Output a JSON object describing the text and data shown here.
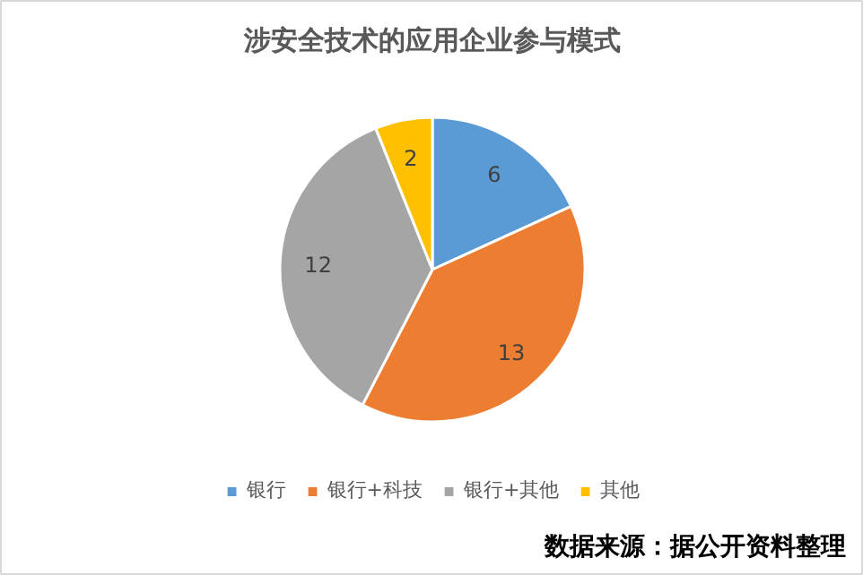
{
  "chart_data": {
    "type": "pie",
    "title": "涉安全技术的应用企业参与模式",
    "categories": [
      "银行",
      "银行+科技",
      "银行+其他",
      "其他"
    ],
    "values": [
      6,
      13,
      12,
      2
    ],
    "colors": [
      "#5b9bd5",
      "#ed7d31",
      "#a5a5a5",
      "#ffc000"
    ],
    "data_labels": true,
    "legend": "bottom",
    "annotations": [
      "数据来源：据公开资料整理"
    ]
  }
}
